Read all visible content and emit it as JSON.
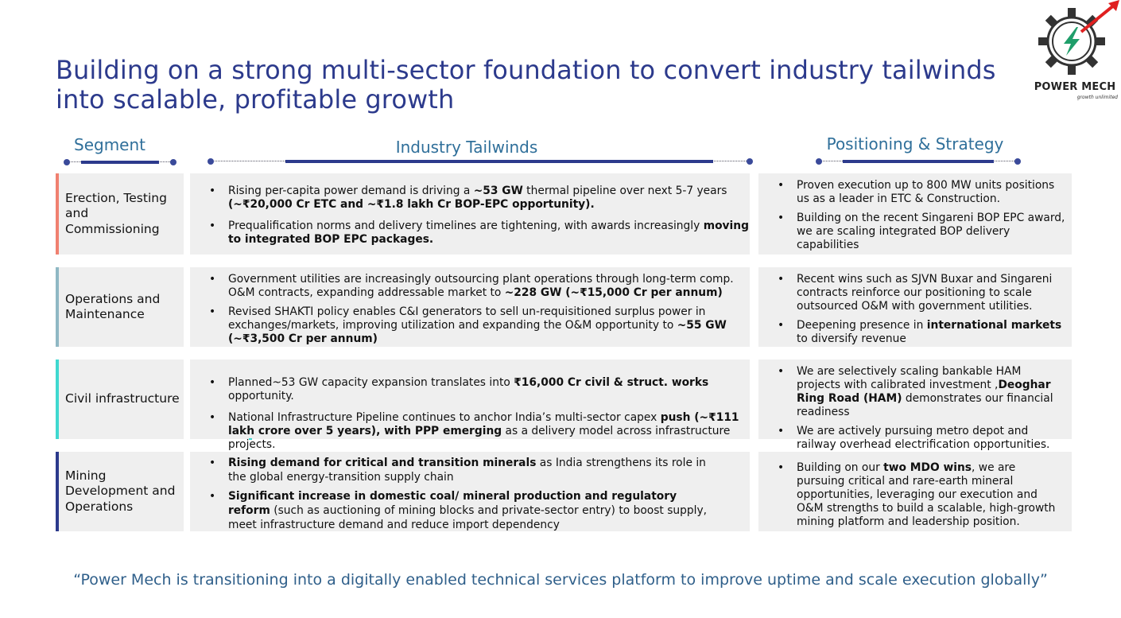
{
  "title": "Building on a strong multi-sector foundation to convert industry tailwinds into scalable, profitable growth",
  "logo": {
    "name": "POWER MECH",
    "tagline": "growth unlimited"
  },
  "headers": {
    "segment": "Segment",
    "tailwinds": "Industry Tailwinds",
    "strategy": "Positioning & Strategy"
  },
  "colors": {
    "title": "#2c3a8c",
    "header": "#2f6f9a",
    "erection": "#f08070",
    "om": "#8fb8c4",
    "civil": "#3fd8d0",
    "mining": "#2c3a8c"
  },
  "rows": [
    {
      "segment": "Erection, Testing and Commissioning",
      "tailwinds": [
        {
          "pre": "Rising per-capita power demand is driving a ",
          "b1": "~53 GW",
          "mid": " thermal pipeline over next 5-7 years ",
          "b2": "(~₹20,000 Cr ETC and ~₹1.8 lakh Cr BOP-EPC opportunity).",
          "post": ""
        },
        {
          "pre": "Prequalification norms and delivery timelines are tightening, with awards increasingly ",
          "b1": "moving to integrated BOP EPC packages.",
          "mid": "",
          "b2": "",
          "post": ""
        }
      ],
      "strategy": [
        {
          "pre": "Proven execution up to 800 MW units positions us as a leader in ETC & Construction.",
          "b1": "",
          "post": ""
        },
        {
          "pre": "Building on the recent Singareni BOP EPC award, we are scaling integrated BOP delivery capabilities",
          "b1": "",
          "post": ""
        }
      ]
    },
    {
      "segment": "Operations and Maintenance",
      "tailwinds": [
        {
          "pre": "Government utilities are increasingly outsourcing plant operations through long-term comp. O&M contracts, expanding addressable market to ",
          "b1": "~228 GW (~₹15,000 Cr per annum)",
          "mid": "",
          "b2": "",
          "post": ""
        },
        {
          "pre": "Revised SHAKTI policy enables C&I generators to sell un-requisitioned surplus power in exchanges/markets, improving utilization and expanding the O&M opportunity to ",
          "b1": "~55 GW (~₹3,500 Cr per annum)",
          "mid": "",
          "b2": "",
          "post": ""
        }
      ],
      "strategy": [
        {
          "pre": "Recent wins such as SJVN Buxar and Singareni contracts reinforce our positioning to scale outsourced O&M with government utilities.",
          "b1": "",
          "post": ""
        },
        {
          "pre": "Deepening presence in ",
          "b1": "international markets",
          "post": " to diversify revenue"
        }
      ]
    },
    {
      "segment": "Civil infrastructure",
      "tailwinds": [
        {
          "pre": "Planned~53 GW capacity expansion translates into ",
          "b1": "₹16,000 Cr civil & struct. works",
          "mid": " opportunity.",
          "b2": "",
          "post": ""
        },
        {
          "pre": "National Infrastructure Pipeline continues to anchor India’s multi-sector capex ",
          "b1": "push (~₹111 lakh crore over 5 years), with PPP emerging",
          "mid": " as a delivery model across infrastructure projects.",
          "b2": "",
          "post": ""
        }
      ],
      "strategy": [
        {
          "pre": "We are selectively scaling bankable HAM projects with calibrated investment ,",
          "b1": "Deoghar Ring Road (HAM)",
          "post": " demonstrates our financial readiness"
        },
        {
          "pre": "We are actively pursuing metro depot and railway overhead electrification opportunities.",
          "b1": "",
          "post": ""
        }
      ]
    },
    {
      "segment": "Mining Development and Operations",
      "tailwinds": [
        {
          "pre": "",
          "b1": "Rising demand for critical and transition minerals",
          "mid": " as India strengthens its role in the global energy-transition supply chain",
          "b2": "",
          "post": ""
        },
        {
          "pre": "",
          "b1": "Significant increase in domestic coal/ mineral production and regulatory reform",
          "mid": " (such as auctioning of mining blocks and private-sector entry) to boost supply, meet infrastructure demand and reduce import dependency",
          "b2": "",
          "post": ""
        }
      ],
      "strategy": [
        {
          "pre": "Building on our ",
          "b1": "two MDO wins",
          "post": ", we are pursuing critical and rare-earth mineral opportunities, leveraging our execution and O&M strengths to build a scalable, high-growth mining platform and leadership position."
        }
      ]
    }
  ],
  "quote": "“Power Mech is transitioning into a digitally enabled technical services platform to improve uptime and scale execution globally”"
}
